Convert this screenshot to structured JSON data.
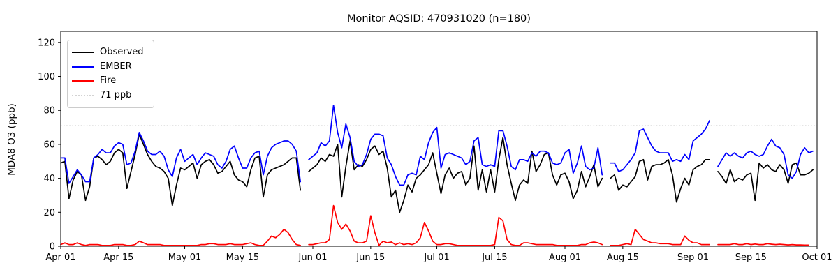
{
  "title": "Monitor AQSID: 470931020 (n=180)",
  "y_axis": {
    "label": "MDA8 O3 (ppb)",
    "ticks": [
      0,
      20,
      40,
      60,
      80,
      100,
      120
    ]
  },
  "x_axis": {
    "tick_labels": [
      "Apr 01",
      "Apr 15",
      "May 01",
      "May 15",
      "Jun 01",
      "Jun 15",
      "Jul 01",
      "Jul 15",
      "Aug 01",
      "Aug 15",
      "Sep 01",
      "Sep 15",
      "Oct 01"
    ],
    "tick_days": [
      0,
      14,
      30,
      44,
      61,
      75,
      91,
      105,
      122,
      136,
      153,
      167,
      183
    ]
  },
  "legend": [
    {
      "label": "Observed",
      "color": "#000000",
      "style": "solid"
    },
    {
      "label": "EMBER",
      "color": "#0000ff",
      "style": "solid"
    },
    {
      "label": "Fire",
      "color": "#ff0000",
      "style": "solid"
    },
    {
      "label": "71 ppb",
      "color": "#d3d3d3",
      "style": "dotted"
    }
  ],
  "chart_data": {
    "type": "line",
    "title": "Monitor AQSID: 470931020 (n=180)",
    "xlabel": "",
    "ylabel": "MDA8 O3 (ppb)",
    "x_start": "Apr 01",
    "x_end": "Sep 30",
    "x_unit": "day",
    "n_points": 180,
    "missing_days": [
      "May 30",
      "Aug 11",
      "Sep 06"
    ],
    "ylim": [
      0,
      126.5
    ],
    "xlim_days": [
      0,
      183
    ],
    "grid": false,
    "legend_position": "upper left",
    "threshold": {
      "value": 71,
      "label": "71 ppb",
      "color": "#d3d3d3",
      "style": "dotted"
    },
    "series": [
      {
        "name": "Observed",
        "color": "#000000",
        "values": [
          49,
          50,
          28,
          39,
          44,
          42,
          27,
          35,
          52,
          53,
          51,
          48,
          50,
          55,
          57,
          55,
          34,
          44,
          54,
          66,
          60,
          54,
          50,
          47,
          46,
          44,
          40,
          24,
          36,
          46,
          45,
          47,
          49,
          40,
          48,
          50,
          51,
          48,
          43,
          44,
          47,
          50,
          42,
          39,
          38,
          35,
          45,
          52,
          53,
          29,
          42,
          45,
          46,
          47,
          48,
          50,
          52,
          52,
          33,
          null,
          44,
          46,
          48,
          52,
          50,
          54,
          53,
          60,
          29,
          47,
          62,
          45,
          48,
          47,
          51,
          57,
          59,
          54,
          56,
          46,
          29,
          33,
          20,
          27,
          36,
          32,
          40,
          42,
          45,
          48,
          55,
          43,
          31,
          42,
          46,
          40,
          43,
          44,
          36,
          40,
          59,
          33,
          45,
          32,
          45,
          32,
          51,
          64,
          48,
          37,
          27,
          36,
          39,
          37,
          56,
          44,
          48,
          54,
          55,
          42,
          36,
          42,
          43,
          38,
          28,
          33,
          44,
          35,
          41,
          48,
          35,
          40,
          null,
          40,
          42,
          33,
          36,
          35,
          38,
          41,
          50,
          51,
          39,
          47,
          48,
          48,
          49,
          51,
          42,
          26,
          34,
          40,
          36,
          45,
          47,
          48,
          51,
          51,
          null,
          44,
          41,
          37,
          45,
          38,
          40,
          39,
          42,
          43,
          27,
          49,
          46,
          48,
          45,
          44,
          48,
          45,
          37,
          48,
          49,
          42,
          42,
          43,
          45
        ]
      },
      {
        "name": "EMBER",
        "color": "#0000ff",
        "values": [
          52,
          52,
          37,
          41,
          45,
          42,
          38,
          38,
          52,
          54,
          57,
          55,
          55,
          59,
          61,
          60,
          48,
          49,
          56,
          67,
          62,
          56,
          54,
          54,
          56,
          53,
          45,
          41,
          52,
          57,
          50,
          52,
          54,
          48,
          52,
          55,
          54,
          53,
          48,
          46,
          50,
          57,
          59,
          52,
          46,
          46,
          52,
          55,
          56,
          42,
          53,
          58,
          60,
          61,
          62,
          62,
          60,
          56,
          38,
          null,
          51,
          53,
          55,
          61,
          59,
          62,
          83,
          67,
          58,
          72,
          64,
          50,
          47,
          48,
          54,
          63,
          66,
          66,
          65,
          52,
          48,
          41,
          36,
          36,
          42,
          43,
          42,
          53,
          51,
          61,
          67,
          70,
          46,
          54,
          55,
          54,
          53,
          52,
          48,
          50,
          62,
          64,
          48,
          47,
          48,
          47,
          68,
          68,
          59,
          47,
          45,
          51,
          51,
          50,
          55,
          53,
          56,
          56,
          55,
          49,
          48,
          49,
          55,
          57,
          43,
          49,
          59,
          47,
          45,
          46,
          58,
          42,
          null,
          49,
          49,
          44,
          45,
          48,
          51,
          55,
          68,
          69,
          64,
          59,
          56,
          55,
          55,
          55,
          50,
          51,
          50,
          54,
          51,
          62,
          64,
          66,
          69,
          74,
          null,
          47,
          51,
          55,
          53,
          55,
          53,
          52,
          55,
          56,
          54,
          53,
          54,
          59,
          63,
          59,
          58,
          54,
          42,
          40,
          44,
          54,
          58,
          55,
          56
        ]
      },
      {
        "name": "Fire",
        "color": "#ff0000",
        "values": [
          1,
          2,
          1,
          1,
          2,
          1,
          0.5,
          1,
          1,
          1,
          0.5,
          0.5,
          0.5,
          1,
          1,
          1,
          0.5,
          0.5,
          1,
          3,
          2,
          1,
          1,
          1,
          1,
          0.5,
          0.5,
          0.5,
          0.5,
          0.5,
          0.5,
          0.5,
          0.5,
          0.5,
          1,
          1,
          1.5,
          1.5,
          1,
          1,
          1,
          1.5,
          1,
          1,
          1,
          1.5,
          2,
          1,
          0.5,
          0.5,
          3,
          6,
          5,
          7,
          10,
          8,
          4,
          1,
          0.5,
          null,
          1,
          1,
          1.5,
          2,
          2,
          4,
          24,
          14,
          10,
          13,
          9,
          3,
          2,
          2,
          3,
          18,
          8,
          0.5,
          3,
          2,
          2.5,
          1,
          2,
          1,
          1.5,
          1,
          2,
          5,
          14,
          9,
          3,
          1,
          1,
          1.5,
          1.5,
          1,
          0.5,
          0.5,
          0.5,
          0.5,
          0.5,
          0.5,
          0.5,
          0.5,
          0.5,
          1,
          17,
          15,
          4,
          1,
          0.5,
          0.5,
          2,
          2,
          1.5,
          1,
          1,
          1,
          1,
          1,
          0.5,
          0.5,
          0.5,
          0.5,
          0.5,
          0.5,
          1,
          1,
          2,
          2.5,
          2,
          1,
          null,
          0.5,
          0.5,
          0.5,
          1,
          1.5,
          1,
          10,
          7,
          4,
          3,
          2,
          2,
          1.5,
          1.5,
          1.5,
          1,
          1,
          1,
          6,
          3.5,
          2,
          2,
          1,
          1,
          1,
          null,
          1,
          1,
          1,
          1,
          1.5,
          1,
          1,
          1.5,
          1,
          1.3,
          1,
          1,
          1.5,
          1.2,
          1,
          1.2,
          1,
          0.8,
          1,
          0.8,
          0.8,
          0.7,
          0.7,
          null
        ]
      }
    ]
  }
}
